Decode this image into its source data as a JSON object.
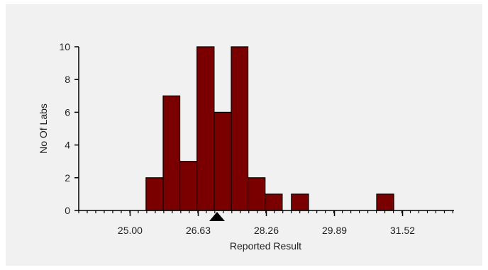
{
  "chart_data": {
    "type": "bar",
    "subtype": "histogram",
    "title": "",
    "xlabel": "Reported Result",
    "ylabel": "No Of Labs",
    "xlim": [
      23.77,
      32.75
    ],
    "ylim": [
      0,
      10
    ],
    "x_ticks": [
      25.0,
      26.63,
      28.26,
      29.89,
      31.52
    ],
    "x_tick_labels": [
      "25.00",
      "26.63",
      "28.26",
      "29.89",
      "31.52"
    ],
    "y_ticks": [
      0,
      2,
      4,
      6,
      8,
      10
    ],
    "y_tick_labels": [
      "0",
      "2",
      "4",
      "6",
      "8",
      "10"
    ],
    "bin_width": 0.407,
    "bins": [
      {
        "start": 25.38,
        "end": 25.79,
        "count": 2
      },
      {
        "start": 25.79,
        "end": 26.19,
        "count": 7
      },
      {
        "start": 26.19,
        "end": 26.6,
        "count": 3
      },
      {
        "start": 26.6,
        "end": 27.01,
        "count": 10
      },
      {
        "start": 27.01,
        "end": 27.42,
        "count": 6
      },
      {
        "start": 27.42,
        "end": 27.82,
        "count": 10
      },
      {
        "start": 27.82,
        "end": 28.23,
        "count": 2
      },
      {
        "start": 28.23,
        "end": 28.64,
        "count": 1
      },
      {
        "start": 28.86,
        "end": 29.27,
        "count": 1
      },
      {
        "start": 30.9,
        "end": 31.31,
        "count": 1
      }
    ],
    "marker": {
      "shape": "triangle",
      "x": 27.08
    },
    "bar_color": "#7a0000",
    "bar_edge_color": "#000000",
    "grid": false
  }
}
